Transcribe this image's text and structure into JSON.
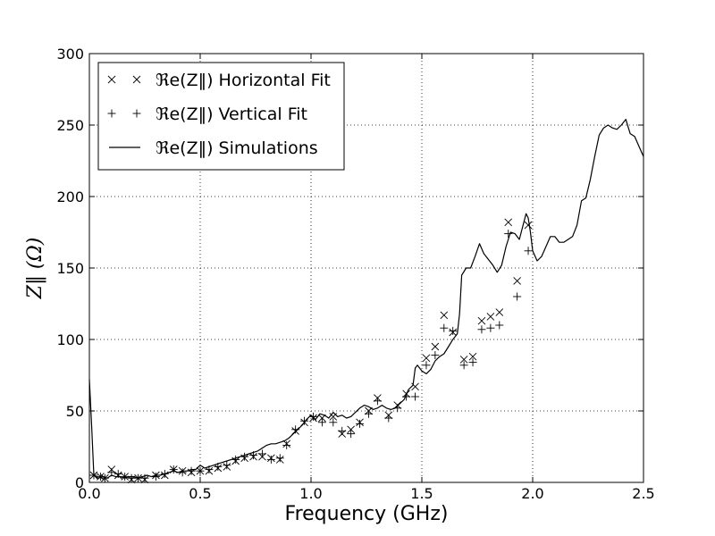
{
  "chart_data": {
    "type": "scatter",
    "xlabel": "Frequency (GHz)",
    "ylabel": "Z‖ (Ω)",
    "xlim": [
      0,
      2.5
    ],
    "ylim": [
      0,
      300
    ],
    "xticks": [
      0,
      0.5,
      1,
      1.5,
      2,
      2.5
    ],
    "xtick_labels": [
      "0.0",
      "0.5",
      "1.0",
      "1.5",
      "2.0",
      "2.5"
    ],
    "yticks": [
      0,
      50,
      100,
      150,
      200,
      250,
      300
    ],
    "ytick_labels": [
      "0",
      "50",
      "100",
      "150",
      "200",
      "250",
      "300"
    ],
    "grid": true,
    "legend_position": "top-left",
    "series": [
      {
        "name": "ℜe(Z‖) Horizontal Fit",
        "marker": "x",
        "points": [
          [
            0.02,
            5
          ],
          [
            0.05,
            4
          ],
          [
            0.07,
            3
          ],
          [
            0.1,
            9
          ],
          [
            0.13,
            5
          ],
          [
            0.16,
            4
          ],
          [
            0.19,
            2
          ],
          [
            0.22,
            3
          ],
          [
            0.25,
            2
          ],
          [
            0.3,
            5
          ],
          [
            0.34,
            5
          ],
          [
            0.38,
            9
          ],
          [
            0.42,
            8
          ],
          [
            0.46,
            7
          ],
          [
            0.5,
            8
          ],
          [
            0.54,
            8
          ],
          [
            0.58,
            10
          ],
          [
            0.62,
            11
          ],
          [
            0.66,
            15
          ],
          [
            0.7,
            17
          ],
          [
            0.74,
            18
          ],
          [
            0.78,
            18
          ],
          [
            0.82,
            17
          ],
          [
            0.86,
            16
          ],
          [
            0.89,
            27
          ],
          [
            0.93,
            36
          ],
          [
            0.97,
            42
          ],
          [
            1.01,
            45
          ],
          [
            1.05,
            45
          ],
          [
            1.1,
            46
          ],
          [
            1.14,
            34
          ],
          [
            1.18,
            37
          ],
          [
            1.22,
            42
          ],
          [
            1.26,
            50
          ],
          [
            1.3,
            59
          ],
          [
            1.35,
            47
          ],
          [
            1.39,
            54
          ],
          [
            1.43,
            62
          ],
          [
            1.47,
            67
          ],
          [
            1.52,
            87
          ],
          [
            1.56,
            95
          ],
          [
            1.6,
            117
          ],
          [
            1.64,
            105
          ],
          [
            1.69,
            86
          ],
          [
            1.73,
            88
          ],
          [
            1.77,
            113
          ],
          [
            1.81,
            116
          ],
          [
            1.85,
            119
          ],
          [
            1.89,
            182
          ],
          [
            1.93,
            141
          ],
          [
            1.98,
            180
          ]
        ]
      },
      {
        "name": "ℜe(Z‖) Vertical Fit",
        "marker": "+",
        "points": [
          [
            0.02,
            5
          ],
          [
            0.05,
            4
          ],
          [
            0.07,
            3
          ],
          [
            0.1,
            7
          ],
          [
            0.13,
            6
          ],
          [
            0.16,
            4
          ],
          [
            0.19,
            3
          ],
          [
            0.22,
            3
          ],
          [
            0.25,
            3
          ],
          [
            0.3,
            4
          ],
          [
            0.34,
            6
          ],
          [
            0.38,
            9
          ],
          [
            0.42,
            7
          ],
          [
            0.46,
            8
          ],
          [
            0.5,
            8
          ],
          [
            0.54,
            9
          ],
          [
            0.58,
            11
          ],
          [
            0.62,
            12
          ],
          [
            0.66,
            16
          ],
          [
            0.7,
            18
          ],
          [
            0.74,
            19
          ],
          [
            0.78,
            20
          ],
          [
            0.82,
            16
          ],
          [
            0.86,
            17
          ],
          [
            0.89,
            26
          ],
          [
            0.93,
            37
          ],
          [
            0.97,
            43
          ],
          [
            1.01,
            46
          ],
          [
            1.05,
            42
          ],
          [
            1.1,
            42
          ],
          [
            1.14,
            36
          ],
          [
            1.18,
            34
          ],
          [
            1.22,
            41
          ],
          [
            1.26,
            48
          ],
          [
            1.3,
            57
          ],
          [
            1.35,
            45
          ],
          [
            1.39,
            52
          ],
          [
            1.43,
            60
          ],
          [
            1.47,
            60
          ],
          [
            1.52,
            82
          ],
          [
            1.56,
            89
          ],
          [
            1.6,
            108
          ],
          [
            1.64,
            106
          ],
          [
            1.69,
            82
          ],
          [
            1.73,
            84
          ],
          [
            1.77,
            107
          ],
          [
            1.81,
            108
          ],
          [
            1.85,
            110
          ],
          [
            1.89,
            174
          ],
          [
            1.93,
            130
          ],
          [
            1.98,
            162
          ]
        ]
      },
      {
        "name": "ℜe(Z‖) Simulations",
        "marker": "line",
        "points": [
          [
            0.0,
            72
          ],
          [
            0.01,
            40
          ],
          [
            0.02,
            5
          ],
          [
            0.04,
            3
          ],
          [
            0.06,
            4
          ],
          [
            0.08,
            3
          ],
          [
            0.1,
            5
          ],
          [
            0.12,
            4
          ],
          [
            0.14,
            4
          ],
          [
            0.16,
            3
          ],
          [
            0.18,
            4
          ],
          [
            0.2,
            4
          ],
          [
            0.22,
            3
          ],
          [
            0.24,
            4
          ],
          [
            0.26,
            5
          ],
          [
            0.28,
            4
          ],
          [
            0.3,
            5
          ],
          [
            0.32,
            5
          ],
          [
            0.34,
            6
          ],
          [
            0.36,
            7
          ],
          [
            0.38,
            8
          ],
          [
            0.4,
            7
          ],
          [
            0.42,
            8
          ],
          [
            0.44,
            8
          ],
          [
            0.46,
            9
          ],
          [
            0.48,
            9
          ],
          [
            0.5,
            12
          ],
          [
            0.52,
            10
          ],
          [
            0.54,
            11
          ],
          [
            0.56,
            12
          ],
          [
            0.58,
            13
          ],
          [
            0.6,
            14
          ],
          [
            0.62,
            15
          ],
          [
            0.64,
            16
          ],
          [
            0.66,
            17
          ],
          [
            0.68,
            18
          ],
          [
            0.7,
            19
          ],
          [
            0.72,
            20
          ],
          [
            0.74,
            21
          ],
          [
            0.76,
            22
          ],
          [
            0.78,
            24
          ],
          [
            0.8,
            26
          ],
          [
            0.82,
            27
          ],
          [
            0.84,
            27
          ],
          [
            0.86,
            28
          ],
          [
            0.88,
            29
          ],
          [
            0.9,
            31
          ],
          [
            0.92,
            34
          ],
          [
            0.94,
            37
          ],
          [
            0.96,
            40
          ],
          [
            0.98,
            44
          ],
          [
            1.0,
            47
          ],
          [
            1.02,
            44
          ],
          [
            1.04,
            48
          ],
          [
            1.06,
            47
          ],
          [
            1.08,
            45
          ],
          [
            1.1,
            49
          ],
          [
            1.12,
            46
          ],
          [
            1.14,
            47
          ],
          [
            1.16,
            45
          ],
          [
            1.18,
            46
          ],
          [
            1.2,
            49
          ],
          [
            1.22,
            52
          ],
          [
            1.24,
            54
          ],
          [
            1.26,
            53
          ],
          [
            1.28,
            51
          ],
          [
            1.3,
            52
          ],
          [
            1.32,
            54
          ],
          [
            1.34,
            52
          ],
          [
            1.36,
            51
          ],
          [
            1.38,
            52
          ],
          [
            1.4,
            55
          ],
          [
            1.42,
            58
          ],
          [
            1.44,
            65
          ],
          [
            1.46,
            68
          ],
          [
            1.47,
            80
          ],
          [
            1.48,
            82
          ],
          [
            1.5,
            78
          ],
          [
            1.52,
            76
          ],
          [
            1.54,
            79
          ],
          [
            1.56,
            85
          ],
          [
            1.58,
            88
          ],
          [
            1.6,
            90
          ],
          [
            1.62,
            95
          ],
          [
            1.64,
            100
          ],
          [
            1.66,
            104
          ],
          [
            1.67,
            118
          ],
          [
            1.68,
            145
          ],
          [
            1.7,
            150
          ],
          [
            1.72,
            150
          ],
          [
            1.74,
            158
          ],
          [
            1.76,
            167
          ],
          [
            1.78,
            160
          ],
          [
            1.8,
            156
          ],
          [
            1.82,
            152
          ],
          [
            1.84,
            147
          ],
          [
            1.86,
            152
          ],
          [
            1.88,
            165
          ],
          [
            1.9,
            175
          ],
          [
            1.92,
            174
          ],
          [
            1.94,
            170
          ],
          [
            1.96,
            182
          ],
          [
            1.97,
            188
          ],
          [
            1.98,
            185
          ],
          [
            1.99,
            175
          ],
          [
            2.0,
            162
          ],
          [
            2.02,
            155
          ],
          [
            2.04,
            158
          ],
          [
            2.06,
            165
          ],
          [
            2.08,
            172
          ],
          [
            2.1,
            172
          ],
          [
            2.12,
            168
          ],
          [
            2.14,
            168
          ],
          [
            2.16,
            170
          ],
          [
            2.18,
            172
          ],
          [
            2.2,
            180
          ],
          [
            2.22,
            197
          ],
          [
            2.24,
            199
          ],
          [
            2.26,
            212
          ],
          [
            2.28,
            228
          ],
          [
            2.3,
            243
          ],
          [
            2.32,
            248
          ],
          [
            2.34,
            250
          ],
          [
            2.36,
            248
          ],
          [
            2.38,
            247
          ],
          [
            2.4,
            250
          ],
          [
            2.42,
            254
          ],
          [
            2.44,
            244
          ],
          [
            2.46,
            242
          ],
          [
            2.48,
            235
          ],
          [
            2.5,
            228
          ]
        ]
      }
    ]
  }
}
